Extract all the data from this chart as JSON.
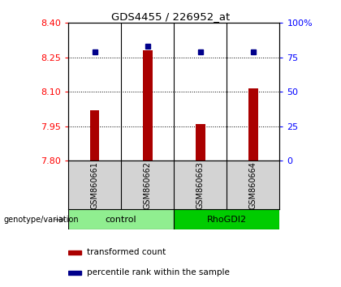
{
  "title": "GDS4455 / 226952_at",
  "samples": [
    "GSM860661",
    "GSM860662",
    "GSM860663",
    "GSM860664"
  ],
  "red_values": [
    8.02,
    8.28,
    7.96,
    8.115
  ],
  "blue_percentiles": [
    79,
    83,
    79,
    79
  ],
  "ylim_left": [
    7.8,
    8.4
  ],
  "ylim_right": [
    0,
    100
  ],
  "left_ticks": [
    7.8,
    7.95,
    8.1,
    8.25,
    8.4
  ],
  "right_ticks": [
    0,
    25,
    50,
    75,
    100
  ],
  "right_tick_labels": [
    "0",
    "25",
    "50",
    "75",
    "100%"
  ],
  "groups": [
    {
      "label": "control",
      "color": "#90EE90",
      "indices": [
        0,
        1
      ]
    },
    {
      "label": "RhoGDI2",
      "color": "#00CC00",
      "indices": [
        2,
        3
      ]
    }
  ],
  "bar_color": "#AA0000",
  "marker_color": "#00008B",
  "bar_width": 0.18,
  "legend_bar_label": "transformed count",
  "legend_marker_label": "percentile rank within the sample",
  "genotype_label": "genotype/variation"
}
